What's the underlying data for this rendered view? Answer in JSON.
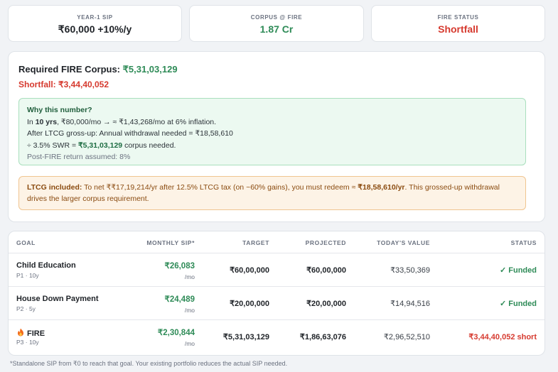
{
  "stats": {
    "sip": {
      "label": "YEAR-1 SIP",
      "value": "₹60,000 +10%/y"
    },
    "corpus": {
      "label": "CORPUS @ FIRE",
      "value": "1.87 Cr"
    },
    "status": {
      "label": "FIRE STATUS",
      "value": "Shortfall"
    }
  },
  "summary": {
    "required_label": "Required FIRE Corpus: ",
    "required_value": "₹5,31,03,129",
    "shortfall_label": "Shortfall: ",
    "shortfall_value": "₹3,44,40,052"
  },
  "why": {
    "title": "Why this number?",
    "l1_a": "In ",
    "l1_b": "10 yrs",
    "l1_c": ", ₹80,000/mo → ≈ ₹1,43,268/mo at 6% inflation.",
    "l2": "After LTCG gross-up: Annual withdrawal needed = ₹18,58,610",
    "l3_a": "÷ 3.5% SWR = ",
    "l3_b": "₹5,31,03,129",
    "l3_c": " corpus needed.",
    "l4": "Post-FIRE return assumed: 8%"
  },
  "ltcg": {
    "title": "LTCG included:",
    "text_a": " To net ₹₹17,19,214/yr after 12.5% LTCG tax (on ~60% gains), you must redeem ≈ ",
    "text_b": "₹18,58,610/yr",
    "text_c": ". This grossed-up withdrawal drives the larger corpus requirement."
  },
  "table": {
    "headers": [
      "GOAL",
      "MONTHLY SIP*",
      "TARGET",
      "PROJECTED",
      "TODAY'S VALUE",
      "STATUS"
    ],
    "rows": [
      {
        "name": "Child Education",
        "sub": "P1 · 10y",
        "sip": "₹26,083",
        "per": "/mo",
        "target": "₹60,00,000",
        "projected": "₹60,00,000",
        "today": "₹33,50,369",
        "status": "✓ Funded"
      },
      {
        "name": "House Down Payment",
        "sub": "P2 · 5y",
        "sip": "₹24,489",
        "per": "/mo",
        "target": "₹20,00,000",
        "projected": "₹20,00,000",
        "today": "₹14,94,516",
        "status": "✓ Funded"
      },
      {
        "name": "FIRE",
        "sub": "P3 · 10y",
        "sip": "₹2,30,844",
        "per": "/mo",
        "target": "₹5,31,03,129",
        "projected": "₹1,86,63,076",
        "today": "₹2,96,52,510",
        "status": "₹3,44,40,052 short"
      }
    ]
  },
  "footnote": "*Standalone SIP from ₹0 to reach that goal. Your existing portfolio reduces the actual SIP needed.",
  "colors": {
    "green": "#2e8b57",
    "red": "#d63a2f",
    "orange_text": "#8a4b10"
  },
  "icons": {
    "fire": "fire-icon"
  }
}
